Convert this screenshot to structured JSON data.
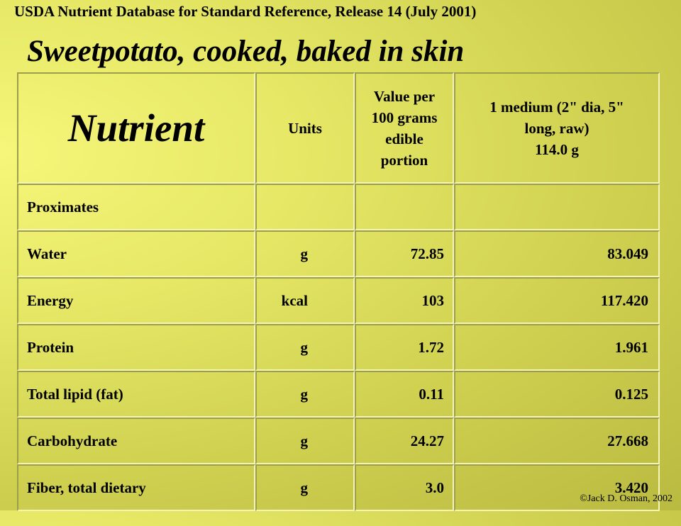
{
  "header": {
    "caption": "USDA Nutrient Database for Standard Reference, Release 14 (July 2001)",
    "title": "Sweetpotato, cooked, baked in skin"
  },
  "table": {
    "columns": {
      "nutrient": "Nutrient",
      "units": "Units",
      "per100": [
        "Value per",
        "100 grams",
        "edible",
        "portion"
      ],
      "measure": [
        "1 medium (2\" dia, 5\"",
        "long, raw)",
        "114.0 g"
      ]
    },
    "rows": [
      {
        "name": "Proximates",
        "unit": "",
        "per100": "",
        "measure": ""
      },
      {
        "name": "Water",
        "unit": "g",
        "per100": "72.85",
        "measure": "83.049"
      },
      {
        "name": "Energy",
        "unit": "kcal",
        "per100": "103",
        "measure": "117.420"
      },
      {
        "name": "Protein",
        "unit": "g",
        "per100": "1.72",
        "measure": "1.961"
      },
      {
        "name": "Total lipid (fat)",
        "unit": "g",
        "per100": "0.11",
        "measure": "0.125"
      },
      {
        "name": "Carbohydrate",
        "unit": "g",
        "per100": "24.27",
        "measure": "27.668"
      },
      {
        "name": "Fiber, total dietary",
        "unit": "g",
        "per100": "3.0",
        "measure": "3.420"
      }
    ]
  },
  "footer": {
    "copyright": "©Jack D. Osman, 2002"
  },
  "colors": {
    "background": "#e6e866",
    "border_dark": "#9d9e4a",
    "border_light": "#f4f4b8"
  }
}
